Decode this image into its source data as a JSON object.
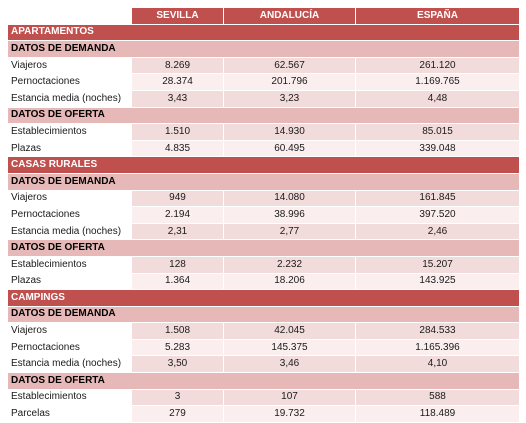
{
  "columns": [
    "SEVILLA",
    "ANDALUCÍA",
    "ESPAÑA"
  ],
  "sections": [
    {
      "title": "APARTAMENTOS",
      "groups": [
        {
          "title": "DATOS DE DEMANDA",
          "rows": [
            {
              "label": "Viajeros",
              "values": [
                "8.269",
                "62.567",
                "261.120"
              ]
            },
            {
              "label": "Pernoctaciones",
              "values": [
                "28.374",
                "201.796",
                "1.169.765"
              ]
            },
            {
              "label": "Estancia media (noches)",
              "values": [
                "3,43",
                "3,23",
                "4,48"
              ]
            }
          ]
        },
        {
          "title": "DATOS DE OFERTA",
          "rows": [
            {
              "label": "Establecimientos",
              "values": [
                "1.510",
                "14.930",
                "85.015"
              ]
            },
            {
              "label": "Plazas",
              "values": [
                "4.835",
                "60.495",
                "339.048"
              ]
            }
          ]
        }
      ]
    },
    {
      "title": "CASAS RURALES",
      "groups": [
        {
          "title": "DATOS DE DEMANDA",
          "rows": [
            {
              "label": "Viajeros",
              "values": [
                "949",
                "14.080",
                "161.845"
              ]
            },
            {
              "label": "Pernoctaciones",
              "values": [
                "2.194",
                "38.996",
                "397.520"
              ]
            },
            {
              "label": "Estancia media (noches)",
              "values": [
                "2,31",
                "2,77",
                "2,46"
              ]
            }
          ]
        },
        {
          "title": "DATOS DE OFERTA",
          "rows": [
            {
              "label": "Establecimientos",
              "values": [
                "128",
                "2.232",
                "15.207"
              ]
            },
            {
              "label": "Plazas",
              "values": [
                "1.364",
                "18.206",
                "143.925"
              ]
            }
          ]
        }
      ]
    },
    {
      "title": "CAMPINGS",
      "groups": [
        {
          "title": "DATOS DE DEMANDA",
          "rows": [
            {
              "label": "Viajeros",
              "values": [
                "1.508",
                "42.045",
                "284.533"
              ]
            },
            {
              "label": "Pernoctaciones",
              "values": [
                "5.283",
                "145.375",
                "1.165.396"
              ]
            },
            {
              "label": "Estancia media (noches)",
              "values": [
                "3,50",
                "3,46",
                "4,10"
              ]
            }
          ]
        },
        {
          "title": "DATOS DE OFERTA",
          "rows": [
            {
              "label": "Establecimientos",
              "values": [
                "3",
                "107",
                "588"
              ]
            },
            {
              "label": "Parcelas",
              "values": [
                "279",
                "19.732",
                "118.489"
              ]
            }
          ]
        }
      ]
    }
  ]
}
